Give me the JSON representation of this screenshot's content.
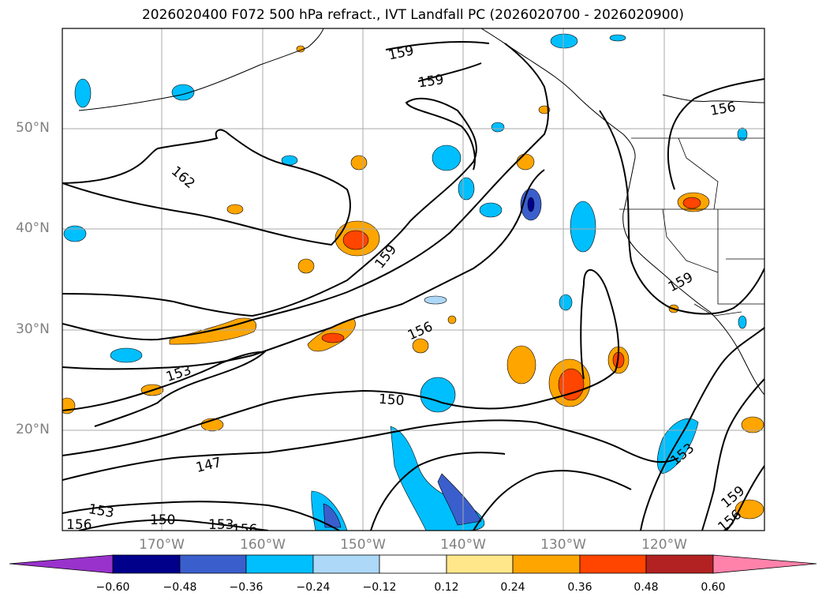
{
  "title": "2026020400 F072 500 hPa refract., IVT Landfall PC (2026020700 - 2026020900)",
  "latitude_labels": [
    "50°N",
    "40°N",
    "30°N",
    "20°N"
  ],
  "longitude_labels": [
    "170°W",
    "160°W",
    "150°W",
    "140°W",
    "130°W",
    "120°W"
  ],
  "contour_labels": [
    "159",
    "159",
    "156",
    "162",
    "159",
    "156",
    "159",
    "153",
    "150",
    "147",
    "153",
    "156",
    "150",
    "153",
    "156",
    "153",
    "159",
    "156"
  ],
  "colorbar": {
    "ticks": [
      "−0.60",
      "−0.48",
      "−0.36",
      "−0.24",
      "−0.12",
      "0.12",
      "0.24",
      "0.36",
      "0.48",
      "0.60"
    ],
    "colors": [
      "#9932cc",
      "#00008b",
      "#3a5fcd",
      "#00bfff",
      "#add8f7",
      "#ffffff",
      "#ffe78a",
      "#ffa500",
      "#ff4500",
      "#b22222",
      "#ff82ab"
    ]
  },
  "colors": {
    "land_outline": "#000000",
    "grid": "#aaaaaa",
    "axis_label": "#808080"
  }
}
